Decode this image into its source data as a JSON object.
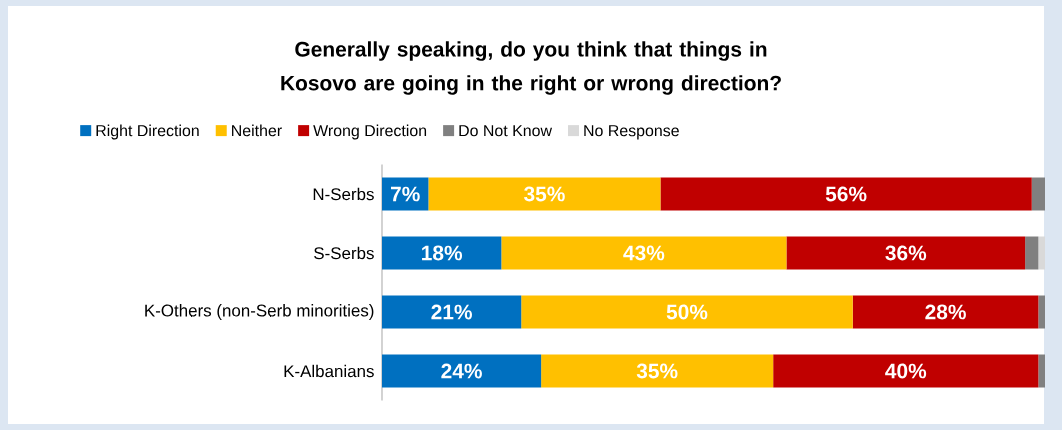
{
  "chart_data": {
    "type": "bar",
    "orientation": "horizontal",
    "stacked": true,
    "title": "Generally speaking, do you think that things in Kosovo are going in the right or wrong direction?",
    "categories": [
      "N-Serbs",
      "S-Serbs",
      "K-Others (non-Serb minorities)",
      "K-Albanians"
    ],
    "series": [
      {
        "name": "Right Direction",
        "color": "#0070c0",
        "values": [
          7,
          18,
          21,
          24
        ],
        "value_labels": [
          "7%",
          "18%",
          "21%",
          "24%"
        ]
      },
      {
        "name": "Neither",
        "color": "#ffc000",
        "values": [
          35,
          43,
          50,
          35
        ],
        "value_labels": [
          "35%",
          "43%",
          "50%",
          "35%"
        ]
      },
      {
        "name": "Wrong Direction",
        "color": "#c00000",
        "values": [
          56,
          36,
          28,
          40
        ],
        "value_labels": [
          "56%",
          "36%",
          "28%",
          "40%"
        ]
      },
      {
        "name": "Do Not Know",
        "color": "#808080",
        "values": [
          2,
          2,
          1,
          1
        ],
        "value_labels": [
          null,
          null,
          null,
          null
        ]
      },
      {
        "name": "No Response",
        "color": "#d9d9d9",
        "values": [
          0,
          1,
          0,
          0
        ],
        "value_labels": [
          null,
          null,
          null,
          null
        ]
      }
    ],
    "legend": "top"
  }
}
